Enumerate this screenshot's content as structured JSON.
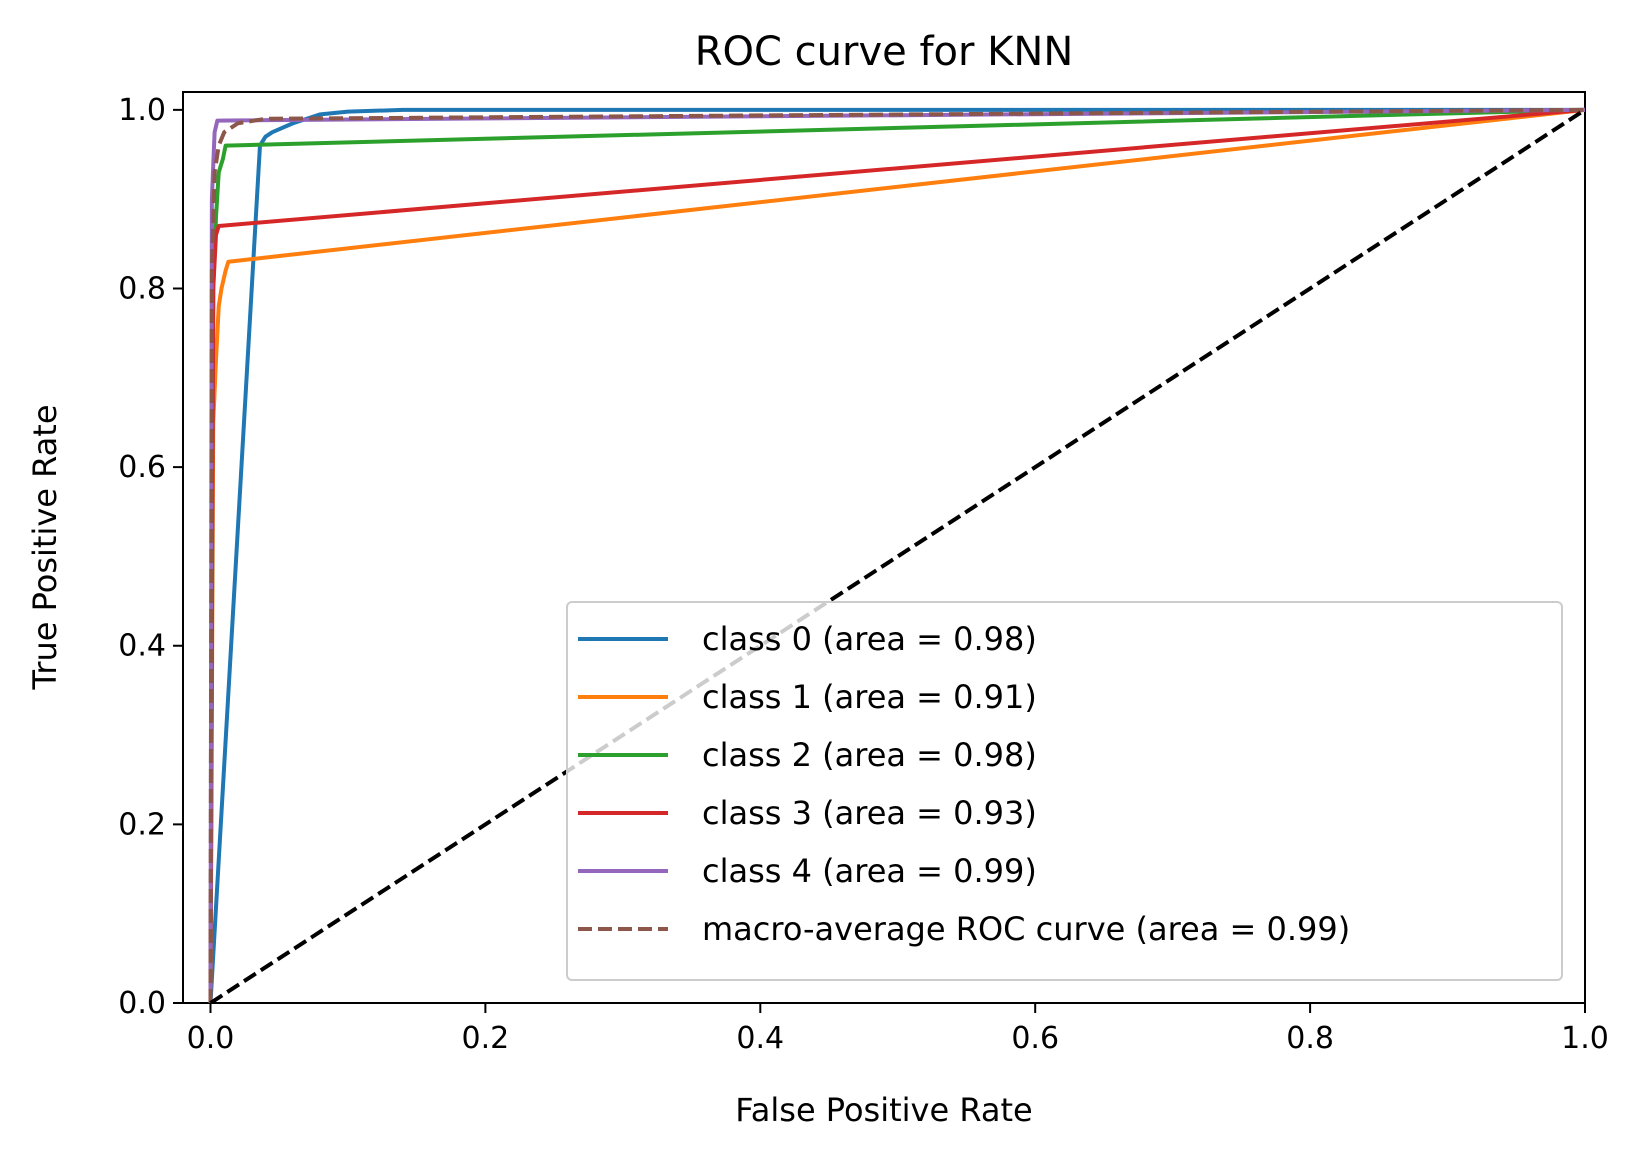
{
  "chart_data": {
    "type": "line",
    "title": "ROC curve for KNN",
    "xlabel": "False Positive Rate",
    "ylabel": "True Positive Rate",
    "xlim": [
      -0.02,
      1.0
    ],
    "ylim": [
      0.0,
      1.02
    ],
    "xticks": [
      0.0,
      0.2,
      0.4,
      0.6,
      0.8,
      1.0
    ],
    "yticks": [
      0.0,
      0.2,
      0.4,
      0.6,
      0.8,
      1.0
    ],
    "tick_labels_x": [
      "0.0",
      "0.2",
      "0.4",
      "0.6",
      "0.8",
      "1.0"
    ],
    "tick_labels_y": [
      "0.0",
      "0.2",
      "0.4",
      "0.6",
      "0.8",
      "1.0"
    ],
    "grid": false,
    "legend_position": "lower-right",
    "series": [
      {
        "name": "class 0 (area = 0.98)",
        "color": "#1f77b4",
        "dash": "solid",
        "points": [
          [
            0.0,
            0.0
          ],
          [
            0.036,
            0.96
          ],
          [
            0.04,
            0.97
          ],
          [
            0.045,
            0.975
          ],
          [
            0.06,
            0.985
          ],
          [
            0.08,
            0.995
          ],
          [
            0.1,
            0.998
          ],
          [
            0.14,
            1.0
          ],
          [
            1.0,
            1.0
          ]
        ]
      },
      {
        "name": "class 1 (area = 0.91)",
        "color": "#ff7f0e",
        "dash": "solid",
        "points": [
          [
            0.0,
            0.0
          ],
          [
            0.002,
            0.65
          ],
          [
            0.004,
            0.72
          ],
          [
            0.006,
            0.78
          ],
          [
            0.008,
            0.8
          ],
          [
            0.011,
            0.82
          ],
          [
            0.013,
            0.83
          ],
          [
            1.0,
            1.0
          ]
        ]
      },
      {
        "name": "class 2 (area = 0.98)",
        "color": "#2ca02c",
        "dash": "solid",
        "points": [
          [
            0.0,
            0.0
          ],
          [
            0.002,
            0.8
          ],
          [
            0.004,
            0.88
          ],
          [
            0.006,
            0.93
          ],
          [
            0.009,
            0.945
          ],
          [
            0.011,
            0.96
          ],
          [
            1.0,
            1.0
          ]
        ]
      },
      {
        "name": "class 3 (area = 0.93)",
        "color": "#d62728",
        "dash": "solid",
        "points": [
          [
            0.0,
            0.0
          ],
          [
            0.002,
            0.8
          ],
          [
            0.004,
            0.86
          ],
          [
            0.006,
            0.87
          ],
          [
            1.0,
            1.0
          ]
        ]
      },
      {
        "name": "class 4 (area = 0.99)",
        "color": "#9467bd",
        "dash": "solid",
        "points": [
          [
            0.0,
            0.0
          ],
          [
            0.001,
            0.9
          ],
          [
            0.003,
            0.975
          ],
          [
            0.005,
            0.988
          ],
          [
            1.0,
            1.0
          ]
        ]
      },
      {
        "name": "macro-average ROC curve (area = 0.99)",
        "color": "#8c564b",
        "dash": "dashed",
        "points": [
          [
            0.0,
            0.0
          ],
          [
            0.001,
            0.82
          ],
          [
            0.003,
            0.93
          ],
          [
            0.006,
            0.96
          ],
          [
            0.01,
            0.975
          ],
          [
            0.02,
            0.985
          ],
          [
            0.04,
            0.99
          ],
          [
            1.0,
            1.0
          ]
        ]
      }
    ],
    "reference_line": {
      "color": "#000000",
      "dash": "dashed",
      "points": [
        [
          0.0,
          0.0
        ],
        [
          1.0,
          1.0
        ]
      ]
    }
  }
}
